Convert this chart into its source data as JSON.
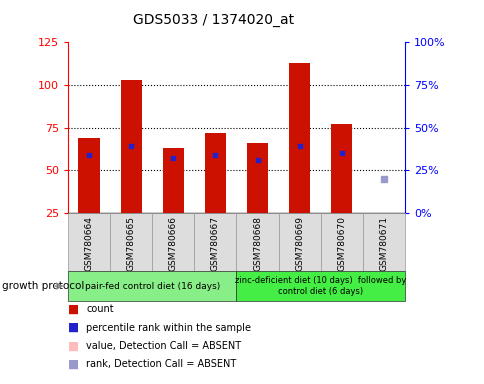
{
  "title": "GDS5033 / 1374020_at",
  "samples": [
    "GSM780664",
    "GSM780665",
    "GSM780666",
    "GSM780667",
    "GSM780668",
    "GSM780669",
    "GSM780670",
    "GSM780671"
  ],
  "bar_heights": [
    69,
    103,
    63,
    72,
    66,
    113,
    77,
    25
  ],
  "blue_dot_y": [
    59,
    64,
    57,
    59,
    56,
    64,
    60,
    null
  ],
  "absent_rank_y": [
    null,
    null,
    null,
    null,
    null,
    null,
    null,
    45
  ],
  "ylim_left": [
    25,
    125
  ],
  "yticks_left": [
    25,
    50,
    75,
    100,
    125
  ],
  "yticks_right": [
    0,
    25,
    50,
    75,
    100
  ],
  "ytick_labels_right": [
    "0%",
    "25%",
    "50%",
    "75%",
    "100%"
  ],
  "bar_color": "#CC1100",
  "blue_dot_color": "#2222CC",
  "absent_rank_color": "#9999CC",
  "group1_label": "pair-fed control diet (16 days)",
  "group2_label": "zinc-deficient diet (10 days)  followed by\ncontrol diet (6 days)",
  "group1_color": "#88EE88",
  "group2_color": "#44EE44",
  "growth_protocol_label": "growth protocol",
  "legend_entries": [
    {
      "label": "count",
      "color": "#CC1100"
    },
    {
      "label": "percentile rank within the sample",
      "color": "#2222CC"
    },
    {
      "label": "value, Detection Call = ABSENT",
      "color": "#FFBBBB"
    },
    {
      "label": "rank, Detection Call = ABSENT",
      "color": "#9999CC"
    }
  ],
  "bar_width": 0.5,
  "bar_bottom": 25
}
